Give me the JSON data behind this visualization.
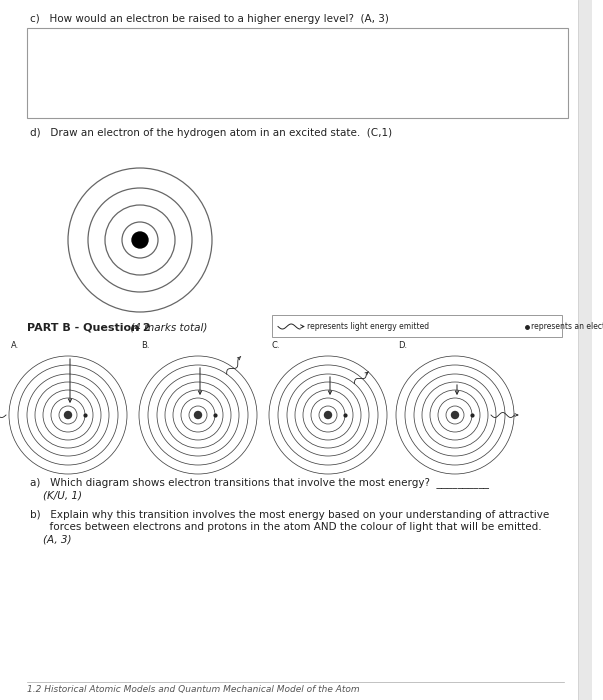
{
  "bg_color": "#ffffff",
  "text_color": "#222222",
  "border_color": "#999999",
  "section_c_question": "c)   How would an electron be raised to a higher energy level?  (A, 3)",
  "section_d_question": "d)   Draw an electron of the hydrogen atom in an excited state.  (C,1)",
  "part_b_label": "PART B - Question 2",
  "part_b_sub": " (4 marks total)",
  "legend_light": "represents light energy emitted",
  "legend_electron": "represents an electron",
  "qa_label": "a)   Which diagram shows electron transitions that involve the most energy?  __________",
  "qa_sub": "(K/U, 1)",
  "qb_line1": "b)   Explain why this transition involves the most energy based on your understanding of attractive",
  "qb_line2": "      forces between electrons and protons in the atom AND the colour of light that will be emitted.",
  "qb_sub": "(A, 3)",
  "footer": "1.2 Historical Atomic Models and Quantum Mechanical Model of the Atom",
  "diagram_labels": [
    "A.",
    "B.",
    "C.",
    "D."
  ]
}
